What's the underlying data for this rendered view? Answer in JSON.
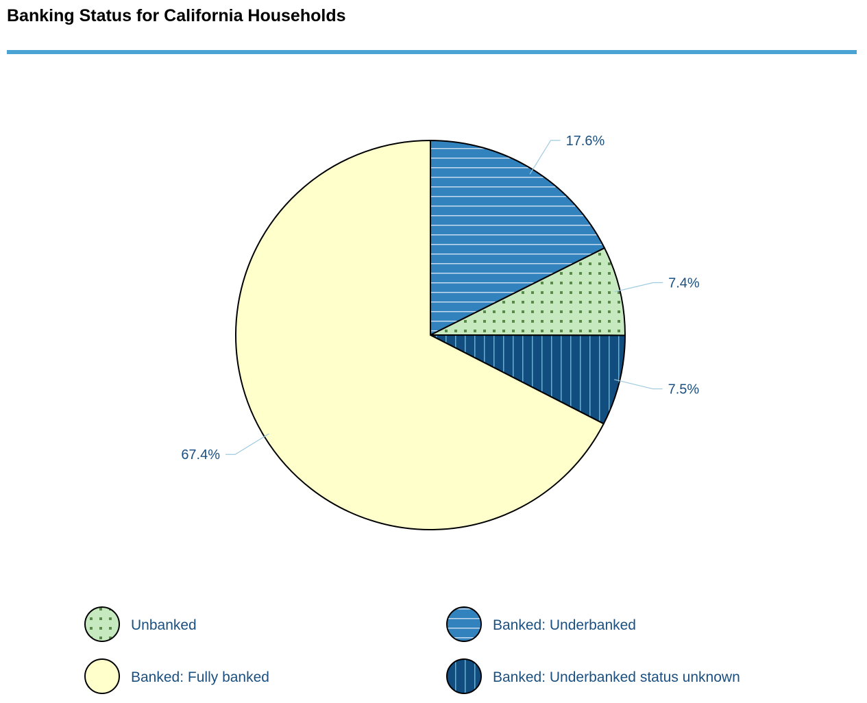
{
  "chart_data": {
    "type": "pie",
    "title": "Banking Status for California Households",
    "start": "top",
    "direction": "clockwise",
    "slices": [
      {
        "name": "Banked: Underbanked",
        "value": 17.6,
        "label": "17.6%",
        "color": "#3182bd",
        "pattern": "horizontal-stripes"
      },
      {
        "name": "Unbanked",
        "value": 7.4,
        "label": "7.4%",
        "color": "#c7e9c0",
        "pattern": "dots"
      },
      {
        "name": "Banked: Underbanked status unknown",
        "value": 7.5,
        "label": "7.5%",
        "color": "#114d7e",
        "pattern": "vertical-stripes"
      },
      {
        "name": "Banked: Fully banked",
        "value": 67.4,
        "label": "67.4%",
        "color": "#ffffcc",
        "pattern": "none"
      }
    ],
    "legend": {
      "placement": "bottom",
      "order": [
        "Unbanked",
        "Banked: Underbanked",
        "Banked: Fully banked",
        "Banked: Underbanked status unknown"
      ]
    },
    "accent_color": "#4aa3d2"
  }
}
